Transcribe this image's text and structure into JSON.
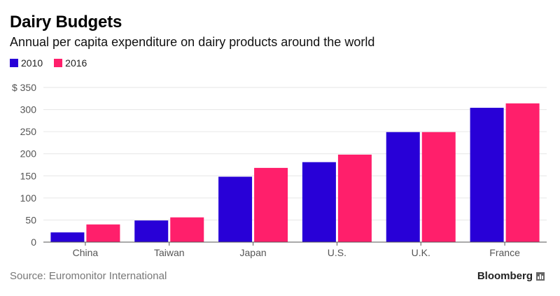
{
  "header": {
    "title": "Dairy Budgets",
    "subtitle": "Annual per capita expenditure on dairy products around the world"
  },
  "footer": {
    "source": "Source: Euromonitor International",
    "brand": "Bloomberg"
  },
  "colors": {
    "series_2010": "#2800d7",
    "series_2016": "#ff1f6b"
  },
  "chart_data": {
    "type": "bar",
    "title": "Dairy Budgets",
    "subtitle": "Annual per capita expenditure on dairy products around the world",
    "categories": [
      "China",
      "Taiwan",
      "Japan",
      "U.S.",
      "U.K.",
      "France"
    ],
    "series": [
      {
        "name": "2010",
        "values": [
          22,
          49,
          148,
          181,
          249,
          304
        ]
      },
      {
        "name": "2016",
        "values": [
          40,
          56,
          168,
          198,
          249,
          314
        ]
      }
    ],
    "y_ticks": [
      "0",
      "50",
      "100",
      "150",
      "200",
      "250",
      "300",
      "$ 350"
    ],
    "ylim": [
      0,
      350
    ],
    "xlabel": "",
    "ylabel": "",
    "grid": true,
    "legend_position": "top-left"
  }
}
